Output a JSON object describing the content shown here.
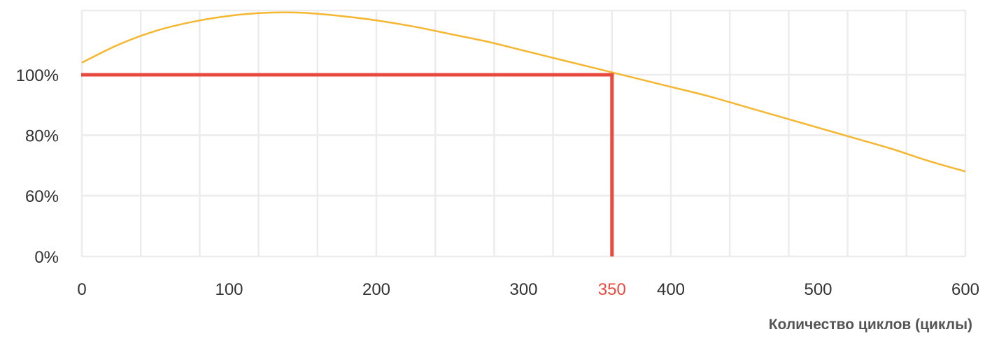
{
  "chart_data": {
    "type": "line",
    "title": "",
    "xlabel": "Количество циклов (циклы)",
    "ylabel": "",
    "xlim": [
      0,
      600
    ],
    "x_ticks": [
      {
        "value": 0,
        "label": "0"
      },
      {
        "value": 100,
        "label": "100"
      },
      {
        "value": 200,
        "label": "200"
      },
      {
        "value": 300,
        "label": "300"
      },
      {
        "value": 400,
        "label": "400"
      },
      {
        "value": 500,
        "label": "500"
      },
      {
        "value": 600,
        "label": "600"
      }
    ],
    "y_ticks": [
      {
        "value": 0,
        "label": "0%"
      },
      {
        "value": 60,
        "label": "60%"
      },
      {
        "value": 80,
        "label": "80%"
      },
      {
        "value": 100,
        "label": "100%"
      }
    ],
    "x_grid_step": 40,
    "grid": true,
    "legend": "none",
    "series": [
      {
        "color": "#f5b731",
        "x": [
          0,
          25,
          50,
          75,
          100,
          125,
          150,
          175,
          200,
          225,
          250,
          275,
          300,
          325,
          350,
          375,
          400,
          425,
          450,
          475,
          500,
          525,
          550,
          575,
          600
        ],
        "y": [
          104,
          110,
          114.5,
          117.5,
          119.5,
          120.5,
          120.5,
          119.5,
          118,
          116,
          113.5,
          111,
          108,
          105,
          102,
          99,
          96,
          93,
          89.5,
          86,
          82.5,
          79,
          75.5,
          71.5,
          68
        ]
      }
    ],
    "annotations": [
      {
        "type": "hline",
        "y": 100,
        "x_from": 0,
        "x_to": 360,
        "color": "#e84a3f"
      },
      {
        "type": "vline",
        "x": 360,
        "y_from": 0,
        "y_to": 100,
        "color": "#e84a3f"
      },
      {
        "type": "x_marker",
        "value": 350,
        "label": "350",
        "color": "#e84a3f"
      }
    ]
  }
}
